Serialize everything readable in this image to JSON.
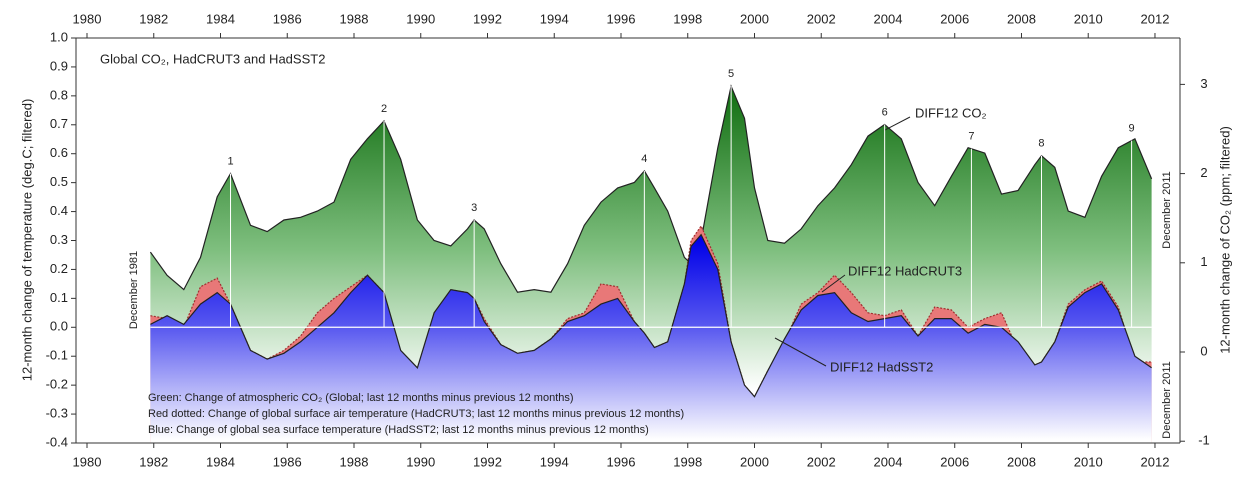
{
  "chart_data": {
    "type": "area",
    "title": "Global CO₂, HadCRUT3 and HadSST2",
    "ylabel": "12-month change of temperature (deg.C; filtered)",
    "y2label": "12-month change of CO₂ (ppm; filtered)",
    "x": [
      1981.9,
      1982.4,
      1982.9,
      1983.4,
      1983.9,
      1984.3,
      1984.9,
      1985.4,
      1985.9,
      1986.4,
      1986.9,
      1987.4,
      1987.9,
      1988.4,
      1988.9,
      1989.4,
      1989.9,
      1990.4,
      1990.9,
      1991.4,
      1991.6,
      1991.9,
      1992.4,
      1992.9,
      1993.4,
      1993.9,
      1994.4,
      1994.9,
      1995.4,
      1995.9,
      1996.4,
      1996.7,
      1997.0,
      1997.4,
      1997.9,
      1998.1,
      1998.4,
      1998.9,
      1999.3,
      1999.7,
      2000.0,
      2000.4,
      2000.9,
      2001.4,
      2001.9,
      2002.4,
      2002.9,
      2003.4,
      2003.9,
      2004.4,
      2004.9,
      2005.4,
      2005.9,
      2006.4,
      2006.9,
      2007.4,
      2007.9,
      2008.4,
      2008.6,
      2009.0,
      2009.4,
      2009.9,
      2010.4,
      2010.9,
      2011.4,
      2011.9
    ],
    "series": [
      {
        "name": "DIFF12 CO₂",
        "color": "#137513",
        "axis": "y2",
        "values": [
          1.12,
          0.86,
          0.7,
          1.06,
          1.74,
          2.0,
          1.42,
          1.35,
          1.48,
          1.51,
          1.58,
          1.68,
          2.16,
          2.39,
          2.59,
          2.16,
          1.48,
          1.25,
          1.19,
          1.38,
          1.48,
          1.38,
          0.99,
          0.67,
          0.7,
          0.67,
          0.99,
          1.42,
          1.68,
          1.84,
          1.9,
          2.03,
          1.84,
          1.58,
          1.06,
          0.99,
          1.25,
          2.29,
          2.98,
          2.62,
          1.84,
          1.25,
          1.22,
          1.38,
          1.64,
          1.84,
          2.1,
          2.42,
          2.55,
          2.39,
          1.9,
          1.64,
          1.97,
          2.29,
          2.23,
          1.77,
          1.81,
          2.1,
          2.2,
          2.07,
          1.58,
          1.51,
          1.97,
          2.29,
          2.39,
          1.94
        ]
      },
      {
        "name": "DIFF12 HadCRUT3",
        "color": "#e87878",
        "values": [
          0.04,
          0.03,
          0.0,
          0.14,
          0.17,
          0.08,
          -0.08,
          -0.11,
          -0.08,
          -0.03,
          0.05,
          0.1,
          0.14,
          0.18,
          0.12,
          -0.12,
          -0.15,
          0.02,
          0.13,
          0.12,
          0.1,
          0.03,
          -0.06,
          -0.09,
          -0.08,
          -0.04,
          0.03,
          0.05,
          0.15,
          0.14,
          0.02,
          -0.02,
          -0.07,
          -0.05,
          0.15,
          0.3,
          0.35,
          0.22,
          -0.05,
          -0.2,
          -0.24,
          -0.15,
          -0.05,
          0.08,
          0.12,
          0.18,
          0.12,
          0.05,
          0.04,
          0.06,
          -0.03,
          0.07,
          0.06,
          0.0,
          0.03,
          0.05,
          -0.08,
          -0.13,
          -0.12,
          -0.05,
          0.08,
          0.13,
          0.16,
          0.07,
          -0.12,
          -0.12
        ]
      },
      {
        "name": "DIFF12 HadSST2",
        "color": "#1414f0",
        "values": [
          0.01,
          0.04,
          0.01,
          0.08,
          0.12,
          0.08,
          -0.08,
          -0.11,
          -0.09,
          -0.05,
          0.0,
          0.05,
          0.12,
          0.18,
          0.12,
          -0.08,
          -0.14,
          0.05,
          0.13,
          0.12,
          0.1,
          0.02,
          -0.06,
          -0.09,
          -0.08,
          -0.04,
          0.02,
          0.04,
          0.08,
          0.1,
          0.02,
          -0.02,
          -0.07,
          -0.05,
          0.15,
          0.28,
          0.32,
          0.2,
          -0.05,
          -0.2,
          -0.24,
          -0.15,
          -0.04,
          0.06,
          0.11,
          0.12,
          0.05,
          0.02,
          0.03,
          0.04,
          -0.03,
          0.03,
          0.03,
          -0.02,
          0.01,
          0.0,
          -0.05,
          -0.13,
          -0.12,
          -0.05,
          0.07,
          0.12,
          0.15,
          0.06,
          -0.1,
          -0.14
        ]
      }
    ],
    "peaks": [
      {
        "label": "1",
        "x": 1984.3
      },
      {
        "label": "2",
        "x": 1988.9
      },
      {
        "label": "3",
        "x": 1991.6
      },
      {
        "label": "4",
        "x": 1996.7
      },
      {
        "label": "5",
        "x": 1999.3
      },
      {
        "label": "6",
        "x": 2003.9
      },
      {
        "label": "7",
        "x": 2006.5
      },
      {
        "label": "8",
        "x": 2008.6
      },
      {
        "label": "9",
        "x": 2011.3
      }
    ],
    "annotations": [
      "December 1981",
      "December 2011",
      "December 2011"
    ],
    "notes": [
      "Green: Change of atmospheric CO₂ (Global; last 12 months minus previous 12 months)",
      "Red dotted: Change of global surface air temperature (HadCRUT3; last 12 months minus previous 12 months)",
      "Blue: Change of global sea surface temperature (HadSST2; last 12 months minus previous 12 months)"
    ],
    "xlim": [
      1979.67,
      2012.75
    ],
    "xticks": [
      1980,
      1982,
      1984,
      1986,
      1988,
      1990,
      1992,
      1994,
      1996,
      1998,
      2000,
      2002,
      2004,
      2006,
      2008,
      2010,
      2012
    ],
    "ylim": [
      -0.4,
      1.0
    ],
    "yticks": [
      {
        "value": 1.0,
        "label": "1.0"
      },
      0.9,
      0.8,
      0.7,
      0.6,
      0.5,
      0.4,
      0.3,
      0.2,
      0.1,
      {
        "value": 0,
        "label": "0.0"
      },
      -0.1,
      -0.2,
      -0.3,
      -0.4
    ],
    "y2lim": [
      -1.02,
      3.52
    ],
    "y2ticks": [
      -1,
      0,
      1,
      2,
      3
    ],
    "zero_line": true
  }
}
